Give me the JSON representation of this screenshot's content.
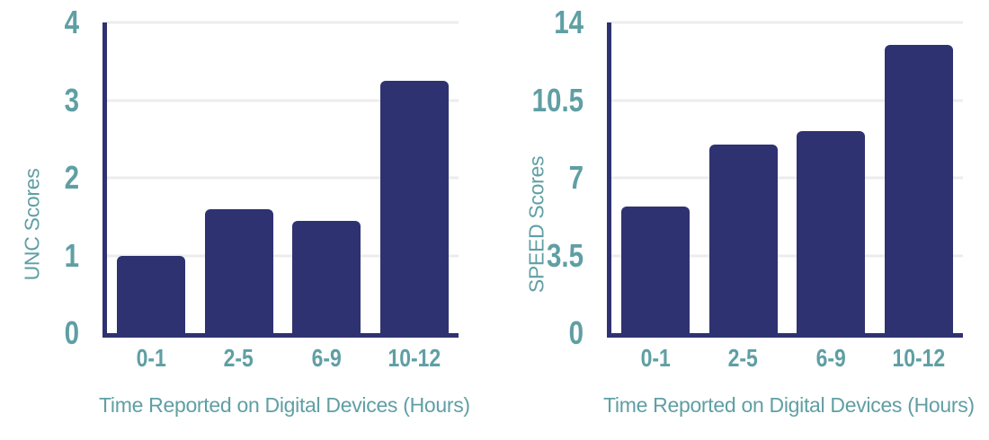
{
  "colors": {
    "bar": "#2f3270",
    "axis": "#2f3270",
    "text_teal": "#5f9fa4",
    "gridline": "#ececec",
    "background": "#ffffff"
  },
  "chart_data": [
    {
      "type": "bar",
      "title": "",
      "ylabel": "UNC Scores",
      "xlabel": "Time Reported on Digital Devices (Hours)",
      "categories": [
        "0-1",
        "2-5",
        "6-9",
        "10-12"
      ],
      "values": [
        1.0,
        1.6,
        1.45,
        3.25
      ],
      "yticks": [
        4,
        3,
        2,
        1,
        0
      ],
      "ylim": [
        0,
        4
      ],
      "grid": true,
      "legend": false
    },
    {
      "type": "bar",
      "title": "",
      "ylabel": "SPEED Scores",
      "xlabel": "Time Reported on Digital Devices (Hours)",
      "categories": [
        "0-1",
        "2-5",
        "6-9",
        "10-12"
      ],
      "values": [
        5.7,
        8.5,
        9.1,
        13.0
      ],
      "yticks": [
        14,
        10.5,
        7,
        3.5,
        0
      ],
      "ylim": [
        0,
        14
      ],
      "grid": true,
      "legend": false
    }
  ]
}
